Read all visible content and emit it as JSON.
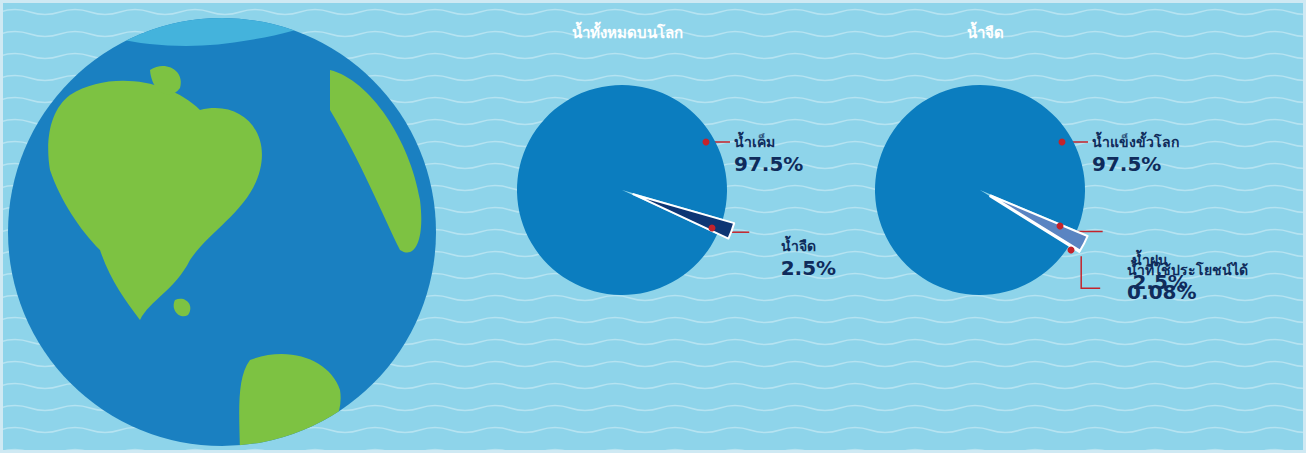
{
  "chart_data": [
    {
      "type": "pie",
      "title": "น้ำทั้งหมดบนโลก",
      "categories": [
        "น้ำเค็ม",
        "น้ำจืด"
      ],
      "values": [
        97.5,
        2.5
      ],
      "value_labels": [
        "97.5%",
        "2.5%"
      ],
      "colors": [
        "#0b7dbf",
        "#0e3674"
      ],
      "data_labels": true
    },
    {
      "type": "pie",
      "title": "น้ำจืด",
      "categories": [
        "น้ำแข็งขั้วโลก",
        "น้ำฝน",
        "น้ำที่ใช้ประโยชน์ได้"
      ],
      "values": [
        97.5,
        2.5,
        0.08
      ],
      "value_labels": [
        "97.5%",
        "2.5%",
        "0.08%"
      ],
      "colors": [
        "#0b7dbf",
        "#5a84c2",
        "#0e3674"
      ],
      "data_labels": true
    }
  ]
}
